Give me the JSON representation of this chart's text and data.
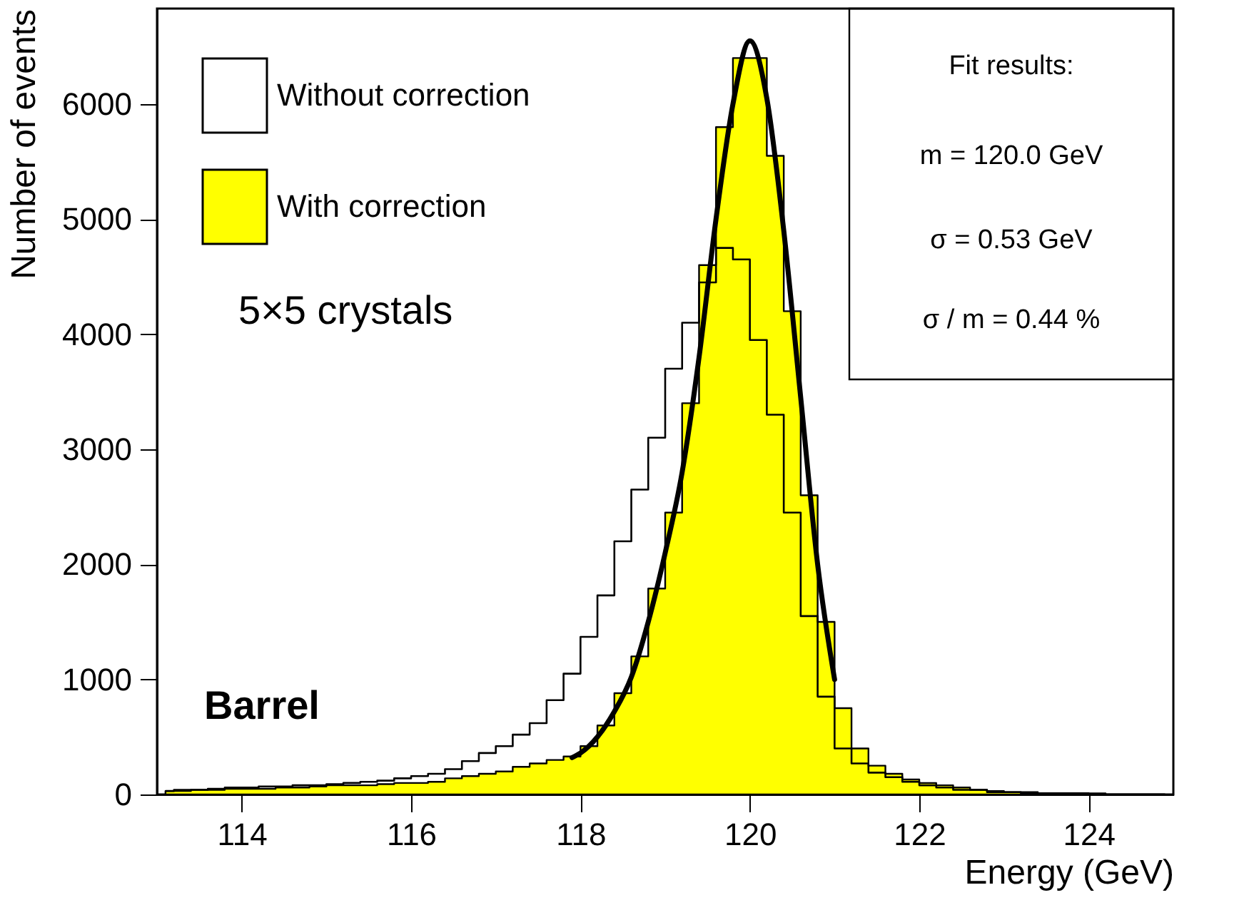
{
  "chart_data": {
    "type": "step",
    "xlabel": "Energy (GeV)",
    "ylabel": "Number of events",
    "xlim": [
      113,
      125
    ],
    "ylim": [
      0,
      6830
    ],
    "xticks": [
      114,
      116,
      118,
      120,
      122,
      124
    ],
    "yticks": [
      0,
      1000,
      2000,
      3000,
      4000,
      5000,
      6000
    ],
    "grid": false,
    "legend": "top left",
    "annotations": [
      "5×5 crystals",
      "Barrel",
      "Fit results:",
      "m = 120.0 GeV",
      "σ = 0.53 GeV",
      "σ / m = 0.44 %"
    ],
    "x": [
      113.1,
      113.3,
      113.5,
      113.7,
      113.9,
      114.1,
      114.3,
      114.5,
      114.7,
      114.9,
      115.1,
      115.3,
      115.5,
      115.7,
      115.9,
      116.1,
      116.3,
      116.5,
      116.7,
      116.9,
      117.1,
      117.3,
      117.5,
      117.7,
      117.9,
      118.1,
      118.3,
      118.5,
      118.7,
      118.9,
      119.1,
      119.3,
      119.5,
      119.7,
      119.9,
      120.1,
      120.3,
      120.5,
      120.7,
      120.9,
      121.1,
      121.3,
      121.5,
      121.7,
      121.9,
      122.1,
      122.3,
      122.5,
      122.7,
      122.9,
      123.1,
      123.3,
      123.5,
      123.7,
      123.9,
      124.1,
      124.3,
      124.5,
      124.7,
      124.9
    ],
    "series": [
      {
        "name": "With correction",
        "type": "area",
        "color": "#ffff00",
        "values": [
          30,
          30,
          40,
          40,
          50,
          50,
          50,
          60,
          60,
          70,
          80,
          80,
          80,
          90,
          100,
          100,
          110,
          140,
          160,
          180,
          200,
          240,
          270,
          300,
          330,
          420,
          600,
          880,
          1200,
          1790,
          2450,
          3400,
          4600,
          5800,
          6400,
          6400,
          5550,
          4200,
          2600,
          1500,
          750,
          400,
          250,
          180,
          130,
          100,
          80,
          60,
          40,
          30,
          20,
          20,
          10,
          10,
          10,
          10,
          0,
          0,
          0,
          0
        ]
      },
      {
        "name": "Without correction",
        "color": "#000000",
        "values": [
          30,
          40,
          40,
          50,
          60,
          60,
          70,
          70,
          80,
          80,
          90,
          100,
          110,
          120,
          140,
          160,
          180,
          220,
          290,
          360,
          420,
          520,
          620,
          820,
          1050,
          1370,
          1730,
          2200,
          2650,
          3100,
          3700,
          4100,
          4450,
          4750,
          4650,
          3950,
          3300,
          2450,
          1550,
          850,
          400,
          270,
          190,
          150,
          110,
          80,
          60,
          40,
          40,
          20,
          20,
          10,
          10,
          10,
          10,
          0,
          0,
          0,
          0,
          0
        ]
      },
      {
        "type": "line",
        "color": "#000000",
        "x": [
          117.9,
          118.0,
          118.2,
          118.4,
          118.6,
          118.8,
          119.0,
          119.2,
          119.4,
          119.6,
          119.8,
          120.0,
          120.2,
          120.4,
          120.6,
          120.8,
          121.0
        ],
        "values": [
          320,
          360,
          500,
          720,
          1020,
          1500,
          2100,
          2800,
          3800,
          5000,
          6000,
          6550,
          6050,
          4900,
          3450,
          2000,
          1000
        ]
      }
    ]
  }
}
